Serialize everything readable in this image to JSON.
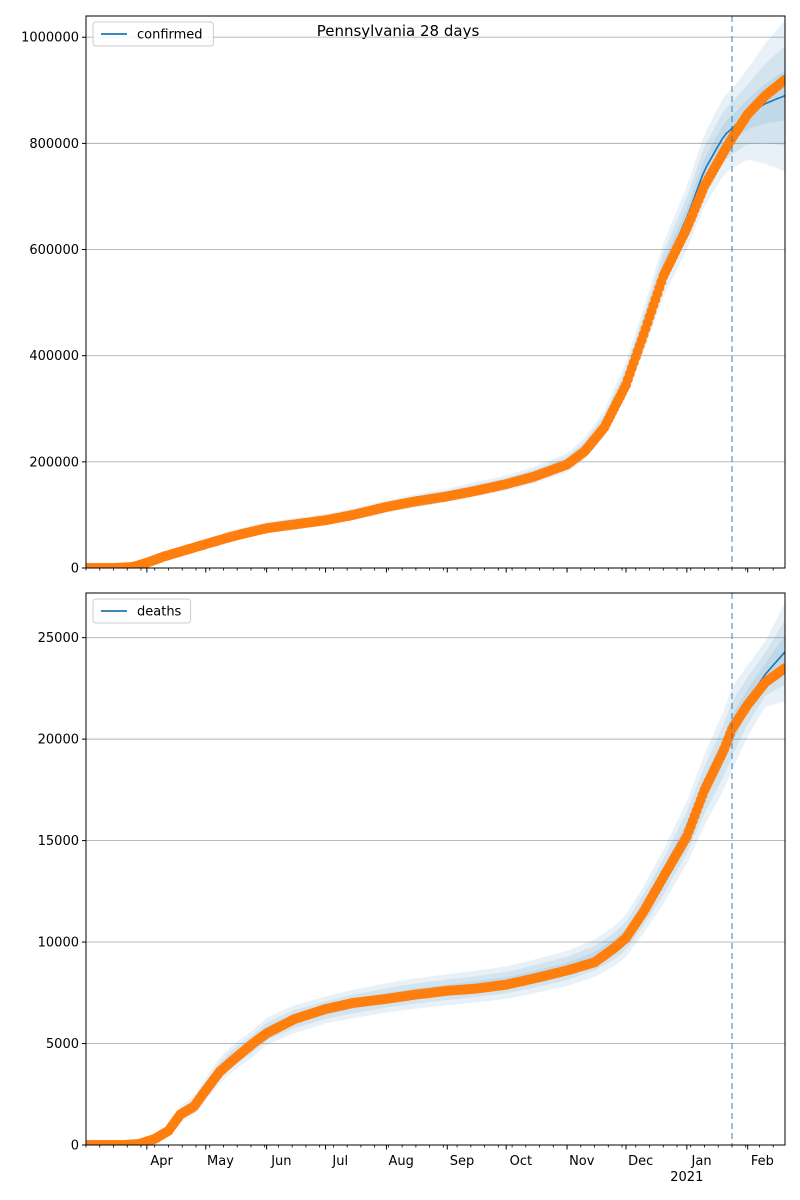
{
  "title": "Pennsylvania 28 days",
  "colors": {
    "model_line": "#1f77b4",
    "observed": "#ff7f0e",
    "band": "#1f77b4",
    "forecast_marker": "#1f77b4",
    "grid": "#b0b0b0"
  },
  "chart_data": [
    {
      "type": "line",
      "legend": "confirmed",
      "legend_position": "top-left",
      "grid": "horizontal",
      "ylim": [
        0,
        1040000
      ],
      "yticks": [
        0,
        200000,
        400000,
        600000,
        800000,
        1000000
      ],
      "ytick_labels": [
        "0",
        "200000",
        "400000",
        "600000",
        "800000",
        "1000000"
      ],
      "forecast_start": "2021-01-24",
      "observed": {
        "dates": [
          "2020-03-01",
          "2020-03-15",
          "2020-03-25",
          "2020-04-01",
          "2020-04-10",
          "2020-04-20",
          "2020-05-01",
          "2020-05-15",
          "2020-06-01",
          "2020-06-15",
          "2020-07-01",
          "2020-07-15",
          "2020-08-01",
          "2020-08-15",
          "2020-09-01",
          "2020-09-15",
          "2020-10-01",
          "2020-10-15",
          "2020-11-01",
          "2020-11-10",
          "2020-11-20",
          "2020-12-01",
          "2020-12-10",
          "2020-12-20",
          "2021-01-01",
          "2021-01-10",
          "2021-01-20",
          "2021-01-24",
          "2021-02-01",
          "2021-02-10",
          "2021-02-20"
        ],
        "values": [
          0,
          0,
          2000,
          10000,
          22000,
          33000,
          45000,
          60000,
          75000,
          82000,
          90000,
          100000,
          115000,
          125000,
          135000,
          145000,
          158000,
          172000,
          195000,
          220000,
          265000,
          345000,
          440000,
          550000,
          640000,
          720000,
          785000,
          810000,
          855000,
          890000,
          920000
        ]
      },
      "model": {
        "dates": [
          "2020-03-01",
          "2020-03-15",
          "2020-03-25",
          "2020-04-01",
          "2020-04-10",
          "2020-04-20",
          "2020-05-01",
          "2020-05-15",
          "2020-06-01",
          "2020-06-15",
          "2020-07-01",
          "2020-07-15",
          "2020-08-01",
          "2020-08-15",
          "2020-09-01",
          "2020-09-15",
          "2020-10-01",
          "2020-10-15",
          "2020-11-01",
          "2020-11-10",
          "2020-11-20",
          "2020-12-01",
          "2020-12-10",
          "2020-12-20",
          "2021-01-01",
          "2021-01-10",
          "2021-01-20",
          "2021-01-24",
          "2021-02-01",
          "2021-02-10",
          "2021-02-20"
        ],
        "values": [
          0,
          0,
          2000,
          10000,
          22000,
          33000,
          46000,
          62000,
          76000,
          83000,
          91000,
          101000,
          116000,
          126000,
          137000,
          148000,
          160000,
          175000,
          198000,
          225000,
          272000,
          355000,
          450000,
          560000,
          660000,
          750000,
          815000,
          828000,
          855000,
          875000,
          890000
        ],
        "band_width_frac": [
          0,
          0,
          0.2,
          0.2,
          0.2,
          0.19,
          0.18,
          0.16,
          0.14,
          0.13,
          0.12,
          0.11,
          0.1,
          0.1,
          0.09,
          0.09,
          0.09,
          0.09,
          0.09,
          0.09,
          0.09,
          0.09,
          0.09,
          0.09,
          0.09,
          0.09,
          0.09,
          0.09,
          0.1,
          0.13,
          0.16
        ]
      }
    },
    {
      "type": "line",
      "legend": "deaths",
      "legend_position": "top-left",
      "grid": "horizontal",
      "ylim": [
        0,
        27200
      ],
      "yticks": [
        0,
        5000,
        10000,
        15000,
        20000,
        25000
      ],
      "ytick_labels": [
        "0",
        "5000",
        "10000",
        "15000",
        "20000",
        "25000"
      ],
      "forecast_start": "2021-01-24",
      "observed": {
        "dates": [
          "2020-03-01",
          "2020-03-20",
          "2020-03-28",
          "2020-04-05",
          "2020-04-12",
          "2020-04-18",
          "2020-04-25",
          "2020-05-01",
          "2020-05-08",
          "2020-05-15",
          "2020-05-25",
          "2020-06-01",
          "2020-06-15",
          "2020-07-01",
          "2020-07-15",
          "2020-08-01",
          "2020-08-15",
          "2020-09-01",
          "2020-09-15",
          "2020-10-01",
          "2020-10-15",
          "2020-11-01",
          "2020-11-15",
          "2020-11-25",
          "2020-12-01",
          "2020-12-10",
          "2020-12-20",
          "2021-01-01",
          "2021-01-10",
          "2021-01-20",
          "2021-01-24",
          "2021-02-01",
          "2021-02-10",
          "2021-02-20"
        ],
        "values": [
          0,
          0,
          50,
          300,
          700,
          1500,
          1900,
          2700,
          3600,
          4200,
          5000,
          5500,
          6200,
          6700,
          7000,
          7200,
          7400,
          7600,
          7700,
          7900,
          8200,
          8600,
          9000,
          9700,
          10200,
          11500,
          13200,
          15200,
          17500,
          19500,
          20500,
          21700,
          22800,
          23500
        ]
      },
      "model": {
        "dates": [
          "2020-03-01",
          "2020-03-20",
          "2020-03-28",
          "2020-04-05",
          "2020-04-12",
          "2020-04-18",
          "2020-04-25",
          "2020-05-01",
          "2020-05-08",
          "2020-05-15",
          "2020-05-25",
          "2020-06-01",
          "2020-06-15",
          "2020-07-01",
          "2020-07-15",
          "2020-08-01",
          "2020-08-15",
          "2020-09-01",
          "2020-09-15",
          "2020-10-01",
          "2020-10-15",
          "2020-11-01",
          "2020-11-15",
          "2020-11-25",
          "2020-12-01",
          "2020-12-10",
          "2020-12-20",
          "2021-01-01",
          "2021-01-10",
          "2021-01-20",
          "2021-01-24",
          "2021-02-01",
          "2021-02-10",
          "2021-02-20"
        ],
        "values": [
          0,
          0,
          50,
          300,
          700,
          1500,
          1950,
          2750,
          3650,
          4300,
          5000,
          5600,
          6200,
          6650,
          6950,
          7250,
          7450,
          7650,
          7800,
          8000,
          8300,
          8700,
          9200,
          9800,
          10300,
          11600,
          13200,
          15400,
          17500,
          19500,
          20500,
          21900,
          23200,
          24300
        ],
        "band_width_frac": [
          0,
          0,
          0.3,
          0.3,
          0.3,
          0.27,
          0.24,
          0.2,
          0.17,
          0.15,
          0.13,
          0.12,
          0.11,
          0.1,
          0.1,
          0.1,
          0.1,
          0.1,
          0.1,
          0.1,
          0.1,
          0.1,
          0.1,
          0.1,
          0.1,
          0.1,
          0.1,
          0.1,
          0.1,
          0.1,
          0.1,
          0.08,
          0.07,
          0.1
        ]
      }
    }
  ],
  "x_axis": {
    "start": "2020-03-01",
    "end": "2021-02-20",
    "major_ticks": [
      {
        "date": "2020-04-01",
        "label": "Apr"
      },
      {
        "date": "2020-05-01",
        "label": "May"
      },
      {
        "date": "2020-06-01",
        "label": "Jun"
      },
      {
        "date": "2020-07-01",
        "label": "Jul"
      },
      {
        "date": "2020-08-01",
        "label": "Aug"
      },
      {
        "date": "2020-09-01",
        "label": "Sep"
      },
      {
        "date": "2020-10-01",
        "label": "Oct"
      },
      {
        "date": "2020-11-01",
        "label": "Nov"
      },
      {
        "date": "2020-12-01",
        "label": "Dec"
      },
      {
        "date": "2021-01-01",
        "label": "Jan"
      },
      {
        "date": "2021-02-01",
        "label": "Feb"
      }
    ],
    "year_label": {
      "date": "2021-01-01",
      "label": "2021"
    }
  }
}
